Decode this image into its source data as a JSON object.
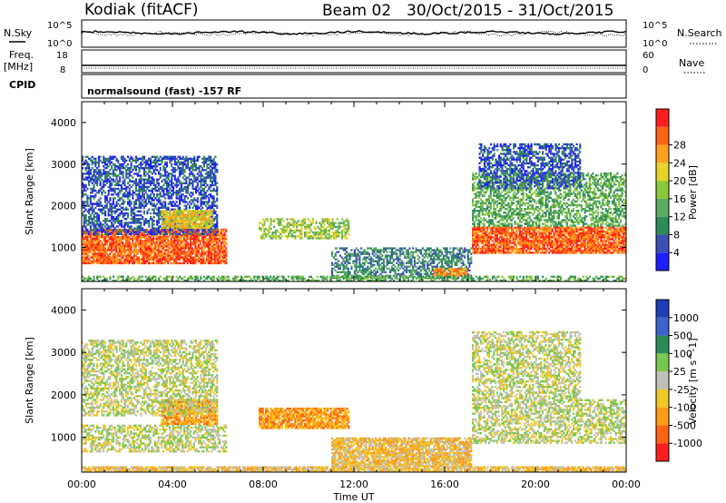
{
  "header": {
    "title": "Kodiak (fitACF)",
    "beam": "Beam 02",
    "date_range": "30/Oct/2015 - 31/Oct/2015"
  },
  "strip_labels": {
    "nsky": "N.Sky",
    "nsearch": "N.Search",
    "freq": "Freq.",
    "freq_unit": "[MHz]",
    "nave": "Nave",
    "cpid": "CPID",
    "cpid_value": "normalsound (fast) -157 RF"
  },
  "strip_ticks": {
    "noise_left": [
      "10^5",
      "10^0"
    ],
    "noise_right": [
      "10^5",
      "10^0"
    ],
    "freq_left": [
      "18",
      "8"
    ],
    "nave_right": [
      "60",
      "0"
    ]
  },
  "chart_data": [
    {
      "type": "heatmap",
      "name": "power",
      "xlabel": "Time UT",
      "ylabel": "Slant Range [km]",
      "xlim": [
        0,
        24
      ],
      "ylim": [
        180,
        4500
      ],
      "x_tick_labels": [
        "00:00",
        "04:00",
        "08:00",
        "12:00",
        "16:00",
        "20:00",
        "00:00"
      ],
      "y_ticks": [
        1000,
        2000,
        3000,
        4000
      ],
      "colorbar": {
        "label": "Power [dB]",
        "tick_labels": [
          "4",
          "8",
          "12",
          "16",
          "20",
          "24",
          "28"
        ],
        "colors": [
          "#1e1eff",
          "#3c50b4",
          "#2e8b57",
          "#5aaa64",
          "#8cc83c",
          "#e6d228",
          "#ffa01e",
          "#ff6414",
          "#ff1e1e"
        ]
      },
      "regions": [
        {
          "t0": 0.0,
          "t1": 6.4,
          "r0": 600,
          "r1": 1450,
          "level": 7
        },
        {
          "t0": 0.0,
          "t1": 6.0,
          "r0": 1300,
          "r1": 3200,
          "level": 1
        },
        {
          "t0": 3.5,
          "t1": 5.8,
          "r0": 1450,
          "r1": 1900,
          "level": 5
        },
        {
          "t0": 7.8,
          "t1": 11.8,
          "r0": 1200,
          "r1": 1700,
          "level": 4
        },
        {
          "t0": 11.0,
          "t1": 17.2,
          "r0": 250,
          "r1": 1000,
          "level": 2
        },
        {
          "t0": 15.5,
          "t1": 17.0,
          "r0": 300,
          "r1": 500,
          "level": 6
        },
        {
          "t0": 17.2,
          "t1": 24.0,
          "r0": 850,
          "r1": 1500,
          "level": 7
        },
        {
          "t0": 17.2,
          "t1": 24.0,
          "r0": 1500,
          "r1": 2800,
          "level": 3
        },
        {
          "t0": 17.5,
          "t1": 22.0,
          "r0": 2400,
          "r1": 3500,
          "level": 1
        },
        {
          "t0": 0.0,
          "t1": 24.0,
          "r0": 180,
          "r1": 320,
          "level": 3
        }
      ]
    },
    {
      "type": "heatmap",
      "name": "velocity",
      "xlabel": "Time UT",
      "ylabel": "Slant Range [km]",
      "xlim": [
        0,
        24
      ],
      "ylim": [
        180,
        4500
      ],
      "x_tick_labels": [
        "00:00",
        "04:00",
        "08:00",
        "12:00",
        "16:00",
        "20:00",
        "00:00"
      ],
      "y_ticks": [
        1000,
        2000,
        3000,
        4000
      ],
      "colorbar": {
        "label": "Velocity [m s^-1]",
        "tick_labels": [
          "1000",
          "500",
          "100",
          "25",
          "-25",
          "-100",
          "-500",
          "-1000"
        ],
        "colors": [
          "#1e3cb4",
          "#3c64c8",
          "#2e8b57",
          "#78c850",
          "#c0c0b8",
          "#f0c828",
          "#ff9b14",
          "#ff6414",
          "#ff1e1e"
        ]
      },
      "regions": [
        {
          "t0": 0.0,
          "t1": 6.4,
          "r0": 650,
          "r1": 1300,
          "level": 4
        },
        {
          "t0": 3.5,
          "t1": 6.0,
          "r0": 1300,
          "r1": 1900,
          "level": 6
        },
        {
          "t0": 0.0,
          "t1": 6.0,
          "r0": 1500,
          "r1": 3300,
          "level": 4
        },
        {
          "t0": 7.8,
          "t1": 11.8,
          "r0": 1200,
          "r1": 1700,
          "level": 6
        },
        {
          "t0": 11.0,
          "t1": 17.2,
          "r0": 300,
          "r1": 1000,
          "level": 5
        },
        {
          "t0": 17.2,
          "t1": 24.0,
          "r0": 850,
          "r1": 1900,
          "level": 4
        },
        {
          "t0": 17.2,
          "t1": 22.0,
          "r0": 1900,
          "r1": 3500,
          "level": 4
        },
        {
          "t0": 0.0,
          "t1": 24.0,
          "r0": 180,
          "r1": 320,
          "level": 5
        }
      ]
    }
  ]
}
